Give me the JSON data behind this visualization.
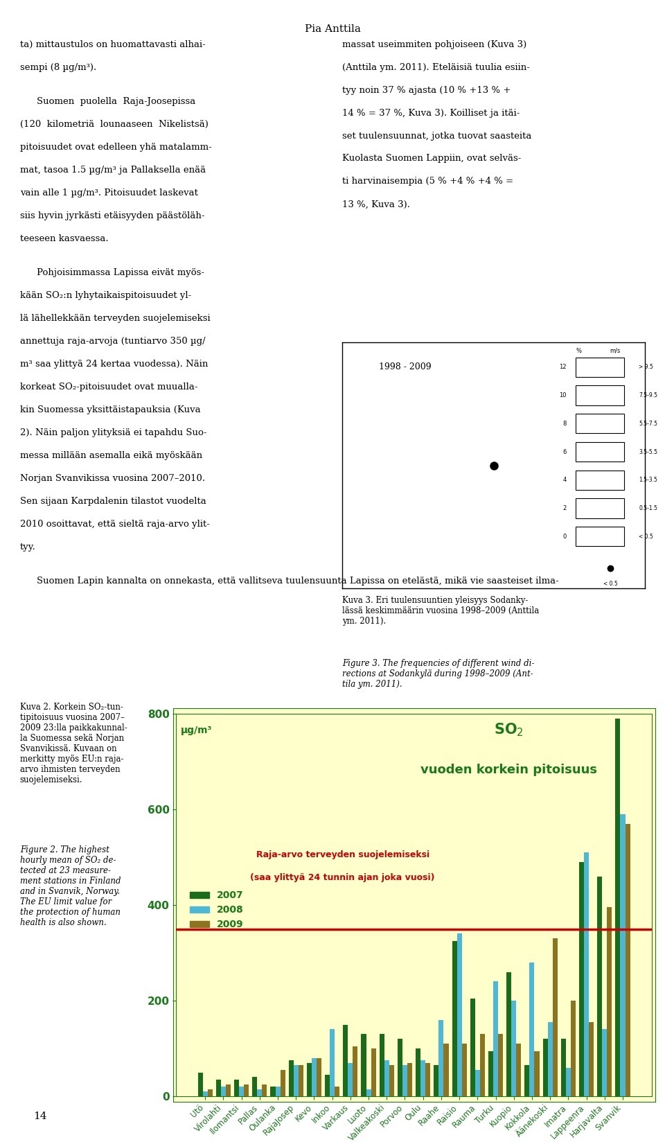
{
  "page_bg": "#ffffff",
  "chart_bg": "#ffffcc",
  "title_color": "#1a7a1a",
  "limit_color": "#cc0000",
  "axis_color": "#1a7a1a",
  "tick_color": "#1a7a1a",
  "header": "Pia Anttila",
  "col1_texts": [
    "ta) mittaustulos on huomattavasti alhai-\nsempi (8 µg/m³).",
    "   Suomen  puolella  Raja-Joosepissa\n(120  kilometriä  lounaaseen  Nikelists)\npitoisuudet ovat edelleen yhä matalammat, tasoa 1.5 µg/m³ ja Pallaksella enää\nvain alle 1 µg/m³. Pitoisuudet laskevat\nsiis hyvin jyrkästi etäisyyden päästöläh-\nteeseen kasvaessa.",
    "   Pohjoisimmassa Lapissa eivät myös-\nkään SO₂:n lyhytaikaispitoisuudet yl-\nlä lähellkään terveyden suojelemiseksi\nannettuja raja-arvoja (tuntiarvo 350 µg/\nm³ saa ylittyä 24 kertaa vuodessa). Näin\nkorkeat SO₂-pitoisuudet ovat muualla-\nkin Suomessa yksittäistapauksia (Kuva\n2). Näin paljon ylityksiä ei tapahdu Suo-\nmessa millään asemalla eikä myöskään\nNorjan Svanvikissa vuosina 2007–2010.\nSen sijaan Karpdalenin tilastot vuodelta\n2010 osoittavat, että sielle raja-arvo ylit-\ntyy.",
    "   Suomen Lapin kannalta on onnekasta, että vallitseva tuulensuunta Lapissa on etelästä, mikä vie saasteiset ilma-"
  ],
  "col2_texts": [
    "massat useimmiten pohjoiseen (Kuva 3)\n(Anttila ym. 2011). Eteläisiä tuulia esiin-\ntyy noin 37 % ajasta (10 % +13 % +\n14 % = 37 %, Kuva 3). Koilliset ja itäi-\nset tuulensuunnat, jotka tuovat saasteita\nKuolasta Suomen Lappiin, ovat selväs-\nti harvinaisempia (5 % +4 % +4 % =\n13 %, Kuva 3)."
  ],
  "windrose_title": "1998 - 2009",
  "caption_left": "Kuva 2. Korkein SO₂-tun-\ntipitoisuus vuosina 2007–\n2009 23:lla paikkakunnal-\nla Suomessa sekä Norjan\nSvanvikissä. Kuvaan on\nmerkitty myös EU:n raja-\narvo ihmisten terveyden\nsuojelemiseksi.\nFigure 2. The highest\nhourly mean of SO₂ de-\ntected at 23 measure-\nment stations in Finland\nand in Svanvik, Norway.\nThe EU limit value for\nthe protection of human\nhealth is also shown.",
  "fig3_caption": "Kuva 3. Eri tuulensuuntien yleisyys Sodanky-\nlässä keskimmäärin vuosina 1998–2009 (Anttila\nym. 2011).\nFigure 3. The frequencies of different wind di-\nrections at Sodankylä during 1998–2009 (Ant-\ntila ym. 2011).",
  "page_number": "14",
  "chart_ylabel": "µg/m³",
  "limit_value": 350,
  "limit_label_line1": "Raja-arvo terveyden suojelemiseksi",
  "limit_label_line2": "(saa ylittyä 24 tunnin ajan joka vuosi)",
  "chart_title_line1": "SO$_2$",
  "chart_title_line2": "vuoden korkein pitoisuus",
  "categories": [
    "Utö",
    "Virolahti",
    "Ilomantsi",
    "Pallas",
    "Oulanka",
    "RajaJosep",
    "Kevo",
    "Inkoo",
    "Varkaus",
    "Luoto",
    "Valkeakoski",
    "Porvoo",
    "Oulu",
    "Raahe",
    "Raisio",
    "Rauma",
    "Turku",
    "Kuopio",
    "Kokkola",
    "Äänekoski",
    "Imatra",
    "Lappeenra",
    "Harjavalta",
    "Svanvik"
  ],
  "data_2007": [
    50,
    35,
    35,
    40,
    20,
    75,
    70,
    45,
    150,
    130,
    130,
    120,
    100,
    65,
    325,
    205,
    95,
    260,
    65,
    120,
    120,
    490,
    460,
    790
  ],
  "data_2008": [
    10,
    20,
    20,
    15,
    20,
    65,
    80,
    140,
    70,
    15,
    75,
    65,
    75,
    160,
    340,
    55,
    240,
    200,
    280,
    155,
    60,
    510,
    140,
    590
  ],
  "data_2009": [
    15,
    25,
    25,
    25,
    55,
    65,
    80,
    20,
    105,
    100,
    65,
    70,
    70,
    110,
    110,
    130,
    130,
    110,
    95,
    330,
    200,
    155,
    395,
    570
  ],
  "color_2007": "#1a6b1a",
  "color_2008": "#4db8d4",
  "color_2009": "#8b7320",
  "ylim": [
    0,
    800
  ],
  "yticks": [
    0,
    200,
    400,
    600,
    800
  ],
  "legend_labels": [
    "2007",
    "2008",
    "2009"
  ]
}
